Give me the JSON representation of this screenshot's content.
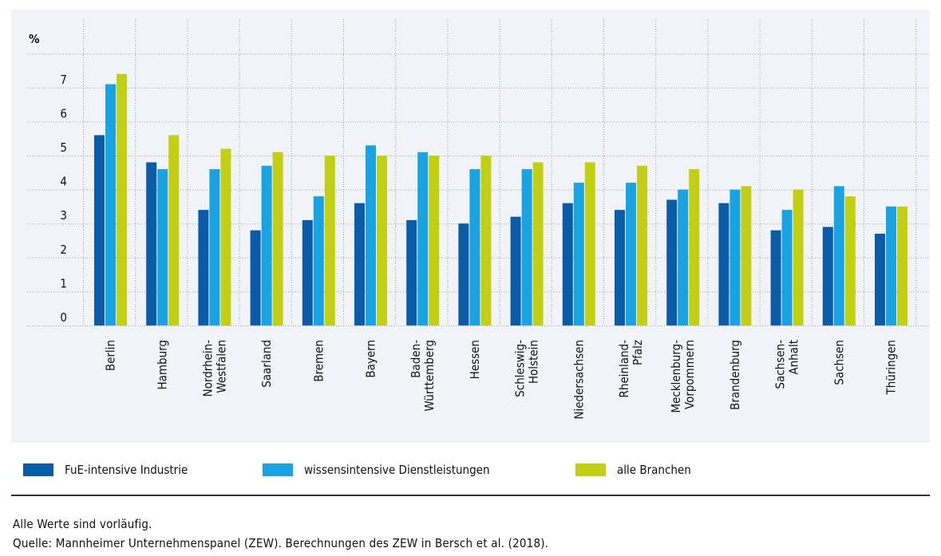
{
  "chart_data": {
    "type": "bar",
    "ylabel": "%",
    "ylim": [
      0,
      8
    ],
    "yticks": [
      0,
      1,
      2,
      3,
      4,
      5,
      6,
      7
    ],
    "grid": true,
    "categories": [
      [
        "Berlin"
      ],
      [
        "Hamburg"
      ],
      [
        "Nordrhein-",
        "Westfalen"
      ],
      [
        "Saarland"
      ],
      [
        "Bremen"
      ],
      [
        "Bayern"
      ],
      [
        "Baden-",
        "Württemberg"
      ],
      [
        "Hessen"
      ],
      [
        "Schleswig-",
        "Holstein"
      ],
      [
        "Niedersachsen"
      ],
      [
        "Rheinland-",
        "Pfalz"
      ],
      [
        "Mecklenburg-",
        "Vorpommern"
      ],
      [
        "Brandenburg"
      ],
      [
        "Sachsen-",
        "Anhalt"
      ],
      [
        "Sachsen"
      ],
      [
        "Thüringen"
      ]
    ],
    "series": [
      {
        "name": "FuE-intensive Industrie",
        "color": "#0a5ca8",
        "values": [
          5.6,
          4.8,
          3.4,
          2.8,
          3.1,
          3.6,
          3.1,
          3.0,
          3.2,
          3.6,
          3.4,
          3.7,
          3.6,
          2.8,
          2.9,
          2.7
        ]
      },
      {
        "name": "wissensintensive Dienstleistungen",
        "color": "#1aa3e3",
        "values": [
          7.1,
          4.6,
          4.6,
          4.7,
          3.8,
          5.3,
          5.1,
          4.6,
          4.6,
          4.2,
          4.2,
          4.0,
          4.0,
          3.4,
          4.1,
          3.5
        ]
      },
      {
        "name": "alle Branchen",
        "color": "#c3cf12",
        "values": [
          7.4,
          5.6,
          5.2,
          5.1,
          5.0,
          5.0,
          5.0,
          5.0,
          4.8,
          4.8,
          4.7,
          4.6,
          4.1,
          4.0,
          3.8,
          3.5
        ]
      }
    ]
  },
  "notes": {
    "line1": "Alle Werte sind vorläufig.",
    "line2": "Quelle: Mannheimer Unternehmenspanel (ZEW). Berechnungen des ZEW in Bersch et al. (2018)."
  }
}
